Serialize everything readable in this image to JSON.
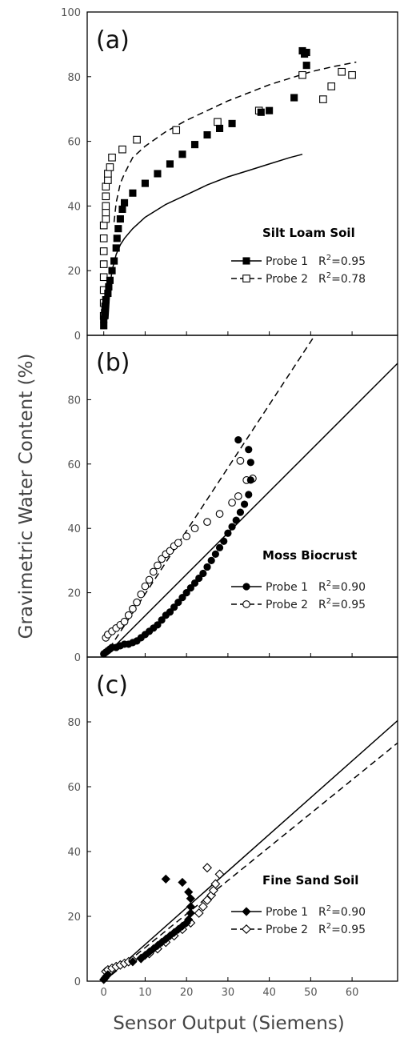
{
  "figure": {
    "ylabel": "Gravimetric Water Content (%)",
    "xlabel": "Sensor Output (Siemens)",
    "xticks": [
      "0",
      "10",
      "20",
      "30",
      "40",
      "50",
      "60"
    ],
    "xlim": [
      -4,
      71
    ]
  },
  "chart_data": [
    {
      "type": "scatter",
      "panel": "(a)",
      "title": "Silt Loam Soil",
      "xlim": [
        -4,
        71
      ],
      "ylim": [
        0,
        100
      ],
      "yticks": [
        "0",
        "20",
        "40",
        "60",
        "80",
        "100"
      ],
      "legend": [
        {
          "label": "Probe 1",
          "r2_prefix": "R",
          "r2_sup": "2",
          "r2_value": "=0.95",
          "marker": "square-filled",
          "line": "solid"
        },
        {
          "label": "Probe 2",
          "r2_prefix": "R",
          "r2_sup": "2",
          "r2_value": "=0.78",
          "marker": "square-open",
          "line": "dashed"
        }
      ],
      "series": [
        {
          "name": "Probe 1",
          "marker": "square-filled",
          "x": [
            0,
            0,
            0.2,
            0.3,
            0.5,
            1,
            1.2,
            1.5,
            2,
            2.5,
            3,
            3.2,
            3.5,
            4,
            4.5,
            5,
            7,
            10,
            13,
            16,
            19,
            22,
            25,
            28,
            31,
            38,
            40,
            46,
            48,
            48.5,
            49,
            49
          ],
          "y": [
            3,
            5,
            7,
            9,
            11,
            13,
            15,
            17,
            20,
            23,
            27,
            30,
            33,
            36,
            39,
            41,
            44,
            47,
            50,
            53,
            56,
            59,
            62,
            64,
            65.5,
            69,
            69.5,
            73.5,
            88,
            87,
            83.5,
            87.5
          ]
        },
        {
          "name": "Probe 2",
          "marker": "square-open",
          "x": [
            0,
            0,
            0,
            0,
            0,
            0,
            0,
            0,
            0.5,
            0.5,
            0.5,
            0.5,
            0.5,
            1,
            1,
            1.5,
            2,
            4.5,
            8,
            17.5,
            27.5,
            37.5,
            48,
            53,
            55,
            57.5,
            60
          ],
          "y": [
            6,
            10,
            14,
            18,
            22,
            26,
            30,
            34,
            36,
            38,
            40,
            43,
            46,
            48,
            50,
            52,
            55,
            57.5,
            60.5,
            63.5,
            66,
            69.5,
            80.5,
            73,
            77,
            81.5,
            80.5
          ]
        }
      ],
      "fits": [
        {
          "name": "Probe 1",
          "style": "solid",
          "x": [
            1,
            1.5,
            2,
            3,
            4,
            5,
            7,
            10,
            15,
            20,
            25,
            30,
            35,
            40,
            45,
            48
          ],
          "y": [
            5,
            15,
            20,
            25,
            28,
            30,
            33,
            36.5,
            40.5,
            43.5,
            46.5,
            49,
            51,
            53,
            55,
            56
          ]
        },
        {
          "name": "Probe 2",
          "style": "dashed",
          "x": [
            2.5,
            3,
            4,
            5,
            7,
            10,
            15,
            20,
            25,
            30,
            35,
            40,
            45,
            50,
            55,
            61
          ],
          "y": [
            35,
            41,
            47,
            50,
            55,
            58.5,
            63,
            66.5,
            69.5,
            72.5,
            75,
            77.5,
            79.5,
            81.5,
            83,
            84.5
          ]
        }
      ]
    },
    {
      "type": "scatter",
      "panel": "(b)",
      "title": "Moss Biocrust",
      "xlim": [
        -4,
        71
      ],
      "ylim": [
        0,
        100
      ],
      "yticks": [
        "0",
        "20",
        "40",
        "60",
        "80"
      ],
      "legend": [
        {
          "label": "Probe 1",
          "r2_prefix": "R",
          "r2_sup": "2",
          "r2_value": "=0.90",
          "marker": "circle-filled",
          "line": "solid"
        },
        {
          "label": "Probe 2",
          "r2_prefix": "R",
          "r2_sup": "2",
          "r2_value": "=0.95",
          "marker": "circle-open",
          "line": "dashed"
        }
      ],
      "series": [
        {
          "name": "Probe 1",
          "marker": "circle-filled",
          "x": [
            0,
            0.5,
            1,
            1.5,
            2,
            3,
            4,
            5,
            6,
            7,
            8,
            9,
            10,
            11,
            12,
            13,
            14,
            15,
            16,
            17,
            18,
            19,
            20,
            21,
            22,
            23,
            24,
            25,
            26,
            27,
            28,
            29,
            30,
            31,
            32,
            33,
            34,
            35,
            35.5,
            35.5,
            35,
            32.5
          ],
          "y": [
            1,
            1.5,
            2,
            2.5,
            3,
            3,
            3.5,
            4,
            4,
            4.5,
            5,
            6,
            7,
            8,
            9,
            10,
            11.5,
            13,
            14,
            15.5,
            17,
            18.5,
            20,
            21.5,
            23,
            24.5,
            26,
            28,
            30,
            32,
            34,
            36,
            38.5,
            40.5,
            42.5,
            45,
            47.5,
            50.5,
            55,
            60.5,
            64.5,
            67.5
          ]
        },
        {
          "name": "Probe 2",
          "marker": "circle-open",
          "x": [
            0.5,
            1,
            2,
            3,
            4,
            5,
            6,
            7,
            8,
            9,
            10,
            11,
            12,
            13,
            14,
            15,
            16,
            17,
            18,
            20,
            22,
            25,
            28,
            31,
            32.5,
            33,
            34.5,
            36
          ],
          "y": [
            6,
            7,
            8,
            9,
            10,
            11,
            13,
            15,
            17,
            19.5,
            22,
            24,
            26.5,
            28.5,
            30.5,
            32,
            33,
            34.5,
            35.5,
            37.5,
            40,
            42,
            44.5,
            48,
            50,
            61,
            55,
            55.5
          ]
        }
      ],
      "fits": [
        {
          "name": "Probe 1",
          "style": "solid",
          "x": [
            0,
            71
          ],
          "y": [
            0,
            91.3
          ]
        },
        {
          "name": "Probe 2",
          "style": "dashed",
          "x": [
            0,
            51
          ],
          "y": [
            0,
            100
          ]
        }
      ]
    },
    {
      "type": "scatter",
      "panel": "(c)",
      "title": "Fine Sand Soil",
      "xlim": [
        -4,
        71
      ],
      "ylim": [
        0,
        100
      ],
      "yticks": [
        "0",
        "20",
        "40",
        "60",
        "80"
      ],
      "legend": [
        {
          "label": "Probe 1",
          "r2_prefix": "R",
          "r2_sup": "2",
          "r2_value": "=0.90",
          "marker": "diamond-filled",
          "line": "solid"
        },
        {
          "label": "Probe 2",
          "r2_prefix": "R",
          "r2_sup": "2",
          "r2_value": "=0.95",
          "marker": "diamond-open",
          "line": "dashed"
        }
      ],
      "series": [
        {
          "name": "Probe 1",
          "marker": "diamond-filled",
          "x": [
            0,
            0.3,
            0.6,
            1,
            7,
            9,
            10,
            11,
            12,
            13,
            14,
            15,
            16,
            17,
            18,
            19,
            20,
            20.5,
            21,
            21,
            21,
            20.5,
            15,
            19
          ],
          "y": [
            0.5,
            1,
            1.5,
            2,
            6,
            7,
            8,
            9,
            10,
            11,
            12,
            13,
            14,
            15,
            16,
            17,
            18,
            19,
            21,
            23,
            25.5,
            27.5,
            31.5,
            30.5
          ]
        },
        {
          "name": "Probe 2",
          "marker": "diamond-open",
          "x": [
            0.5,
            1,
            2,
            3,
            4,
            5,
            6,
            7,
            9,
            11,
            13,
            15,
            17,
            19,
            21,
            23,
            24,
            25,
            26,
            26.5,
            27,
            28,
            25
          ],
          "y": [
            3,
            3.5,
            4,
            4.5,
            5,
            5.5,
            6,
            6.5,
            7,
            8.5,
            10,
            12,
            14,
            16,
            18,
            21,
            23,
            25,
            26.5,
            28,
            30,
            33,
            35
          ]
        }
      ],
      "fits": [
        {
          "name": "Probe 1",
          "style": "solid",
          "x": [
            0,
            71
          ],
          "y": [
            0,
            80.4
          ]
        },
        {
          "name": "Probe 2",
          "style": "dashed",
          "x": [
            0,
            71
          ],
          "y": [
            0,
            73.5
          ]
        }
      ]
    }
  ]
}
